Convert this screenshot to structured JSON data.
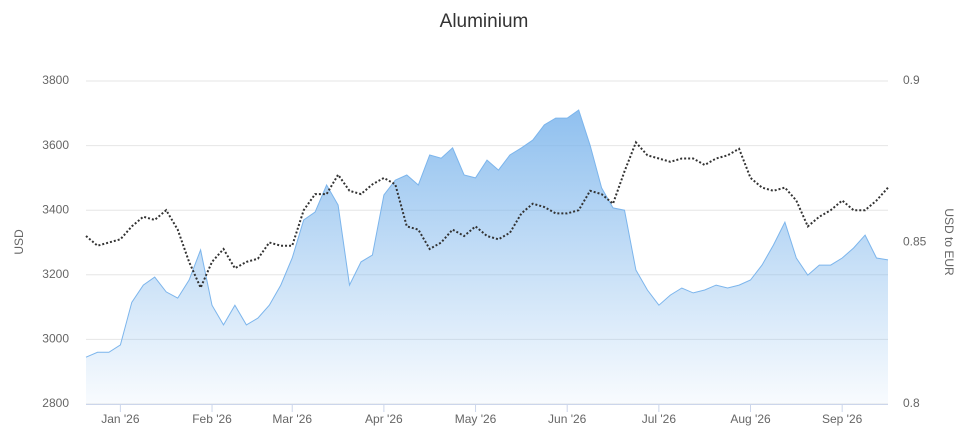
{
  "chart_data": {
    "type": "area-line",
    "title": "Aluminium",
    "y_label": "USD",
    "y2_label": "USD to EUR",
    "categories": [
      null,
      null,
      null,
      "Jan '26",
      null,
      null,
      null,
      null,
      null,
      null,
      null,
      "Feb '26",
      null,
      null,
      null,
      null,
      null,
      null,
      "Mar '26",
      null,
      null,
      null,
      null,
      null,
      null,
      null,
      "Apr '26",
      null,
      null,
      null,
      null,
      null,
      null,
      null,
      "May '26",
      null,
      null,
      null,
      null,
      null,
      null,
      null,
      "Jun '26",
      null,
      null,
      null,
      null,
      null,
      null,
      null,
      "Jul '26",
      null,
      null,
      null,
      null,
      null,
      null,
      null,
      "Aug '26",
      null,
      null,
      null,
      null,
      null,
      null,
      null,
      "Sep '26",
      null,
      null,
      null,
      null
    ],
    "ylim": [
      2800,
      3800
    ],
    "yticks": [
      2800,
      3000,
      3200,
      3400,
      3600,
      3800
    ],
    "y2lim": [
      0.8,
      0.9
    ],
    "y2ticks": [
      0.8,
      0.85,
      0.9
    ],
    "grid": true,
    "series": [
      {
        "type": "area",
        "color": "#7cb5ec",
        "values": [
          2945,
          2960,
          2960,
          2983,
          3115,
          3168,
          3193,
          3147,
          3128,
          3184,
          3277,
          3106,
          3045,
          3106,
          3045,
          3066,
          3106,
          3168,
          3252,
          3370,
          3394,
          3478,
          3416,
          3168,
          3240,
          3261,
          3447,
          3493,
          3509,
          3478,
          3571,
          3561,
          3593,
          3509,
          3500,
          3555,
          3524,
          3571,
          3593,
          3617,
          3664,
          3685,
          3685,
          3710,
          3601,
          3469,
          3407,
          3400,
          3215,
          3153,
          3106,
          3137,
          3159,
          3144,
          3153,
          3168,
          3159,
          3168,
          3184,
          3230,
          3292,
          3363,
          3252,
          3199,
          3230,
          3230,
          3252,
          3283,
          3323,
          3252,
          3246
        ]
      },
      {
        "type": "line",
        "axis": "y2",
        "color": "#333333",
        "values": [
          0.852,
          0.849,
          0.85,
          0.851,
          0.855,
          0.858,
          0.857,
          0.86,
          0.854,
          0.844,
          0.836,
          0.844,
          0.848,
          0.842,
          0.844,
          0.845,
          0.85,
          0.849,
          0.849,
          0.86,
          0.865,
          0.865,
          0.871,
          0.866,
          0.865,
          0.868,
          0.87,
          0.868,
          0.855,
          0.854,
          0.848,
          0.85,
          0.854,
          0.852,
          0.855,
          0.852,
          0.851,
          0.853,
          0.859,
          0.862,
          0.861,
          0.859,
          0.859,
          0.86,
          0.866,
          0.865,
          0.862,
          0.872,
          0.881,
          0.877,
          0.876,
          0.875,
          0.876,
          0.876,
          0.874,
          0.876,
          0.877,
          0.879,
          0.87,
          0.867,
          0.866,
          0.867,
          0.863,
          0.855,
          0.858,
          0.86,
          0.863,
          0.86,
          0.86,
          0.863,
          0.867
        ]
      }
    ]
  }
}
